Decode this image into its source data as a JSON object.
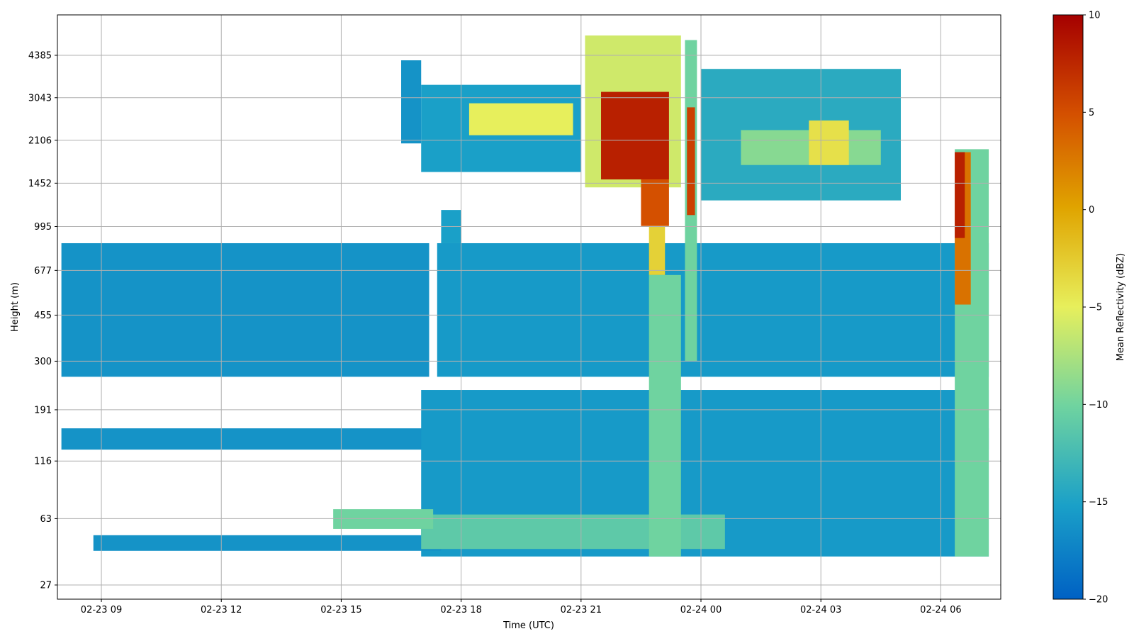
{
  "chart_data": {
    "type": "heatmap",
    "xlabel": "Time (UTC)",
    "ylabel": "Height (m)",
    "x_ticks": [
      "02-23 09",
      "02-23 12",
      "02-23 15",
      "02-23 18",
      "02-23 21",
      "02-24 00",
      "02-24 03",
      "02-24 06"
    ],
    "x_tick_hours": [
      9,
      12,
      15,
      18,
      21,
      24,
      27,
      30
    ],
    "x_range_hours": [
      7.9,
      31.5
    ],
    "y_scale": "log",
    "y_ticks": [
      27,
      63,
      116,
      191,
      300,
      455,
      677,
      995,
      1452,
      2106,
      3043,
      4385
    ],
    "grid": true,
    "colorbar": {
      "label": "Mean Reflectivity (dBZ)",
      "range": [
        -20,
        10
      ],
      "ticks": [
        10,
        5,
        0,
        -5,
        -10,
        -15,
        -20
      ],
      "colormap": [
        "#0061c4",
        "#1aa0c8",
        "#6fd3a0",
        "#e7ef5c",
        "#e0a400",
        "#d45000",
        "#a50000"
      ]
    },
    "regions": [
      {
        "t0": 8.0,
        "t1": 17.2,
        "h0": 260,
        "h1": 860,
        "dbz": -16
      },
      {
        "t0": 17.4,
        "t1": 31.2,
        "h0": 260,
        "h1": 860,
        "dbz": -15.5
      },
      {
        "t0": 17.5,
        "t1": 18.0,
        "h0": 860,
        "h1": 1150,
        "dbz": -15
      },
      {
        "t0": 8.0,
        "t1": 31.2,
        "h0": 130,
        "h1": 160,
        "dbz": -16
      },
      {
        "t0": 17.0,
        "t1": 31.2,
        "h0": 40,
        "h1": 230,
        "dbz": -15.5
      },
      {
        "t0": 8.8,
        "t1": 17.5,
        "h0": 43,
        "h1": 52,
        "dbz": -16
      },
      {
        "t0": 17.0,
        "t1": 24.6,
        "h0": 44,
        "h1": 66,
        "dbz": -11
      },
      {
        "t0": 14.8,
        "t1": 17.3,
        "h0": 56,
        "h1": 70,
        "dbz": -10
      },
      {
        "t0": 16.5,
        "t1": 17.0,
        "h0": 2050,
        "h1": 4200,
        "dbz": -16
      },
      {
        "t0": 17.0,
        "t1": 21.0,
        "h0": 1600,
        "h1": 3400,
        "dbz": -15
      },
      {
        "t0": 18.2,
        "t1": 20.8,
        "h0": 2200,
        "h1": 2900,
        "dbz": -5
      },
      {
        "t0": 24.0,
        "t1": 29.0,
        "h0": 1250,
        "h1": 3900,
        "dbz": -14
      },
      {
        "t0": 25.0,
        "t1": 28.5,
        "h0": 1700,
        "h1": 2300,
        "dbz": -9
      },
      {
        "t0": 26.7,
        "t1": 27.7,
        "h0": 1700,
        "h1": 2500,
        "dbz": -4
      },
      {
        "t0": 21.1,
        "t1": 23.5,
        "h0": 1400,
        "h1": 5200,
        "dbz": -6
      },
      {
        "t0": 21.5,
        "t1": 23.2,
        "h0": 1500,
        "h1": 3200,
        "dbz": 8
      },
      {
        "t0": 22.5,
        "t1": 23.2,
        "h0": 1000,
        "h1": 1500,
        "dbz": 5
      },
      {
        "t0": 22.7,
        "t1": 23.1,
        "h0": 650,
        "h1": 1000,
        "dbz": -3
      },
      {
        "t0": 22.7,
        "t1": 23.5,
        "h0": 40,
        "h1": 650,
        "dbz": -10
      },
      {
        "t0": 23.6,
        "t1": 23.9,
        "h0": 300,
        "h1": 5000,
        "dbz": -10
      },
      {
        "t0": 23.65,
        "t1": 23.85,
        "h0": 1100,
        "h1": 2800,
        "dbz": 6
      },
      {
        "t0": 30.35,
        "t1": 31.2,
        "h0": 40,
        "h1": 1950,
        "dbz": -10
      },
      {
        "t0": 30.35,
        "t1": 30.75,
        "h0": 500,
        "h1": 1900,
        "dbz": 3
      },
      {
        "t0": 30.35,
        "t1": 30.6,
        "h0": 900,
        "h1": 1900,
        "dbz": 8
      }
    ]
  }
}
